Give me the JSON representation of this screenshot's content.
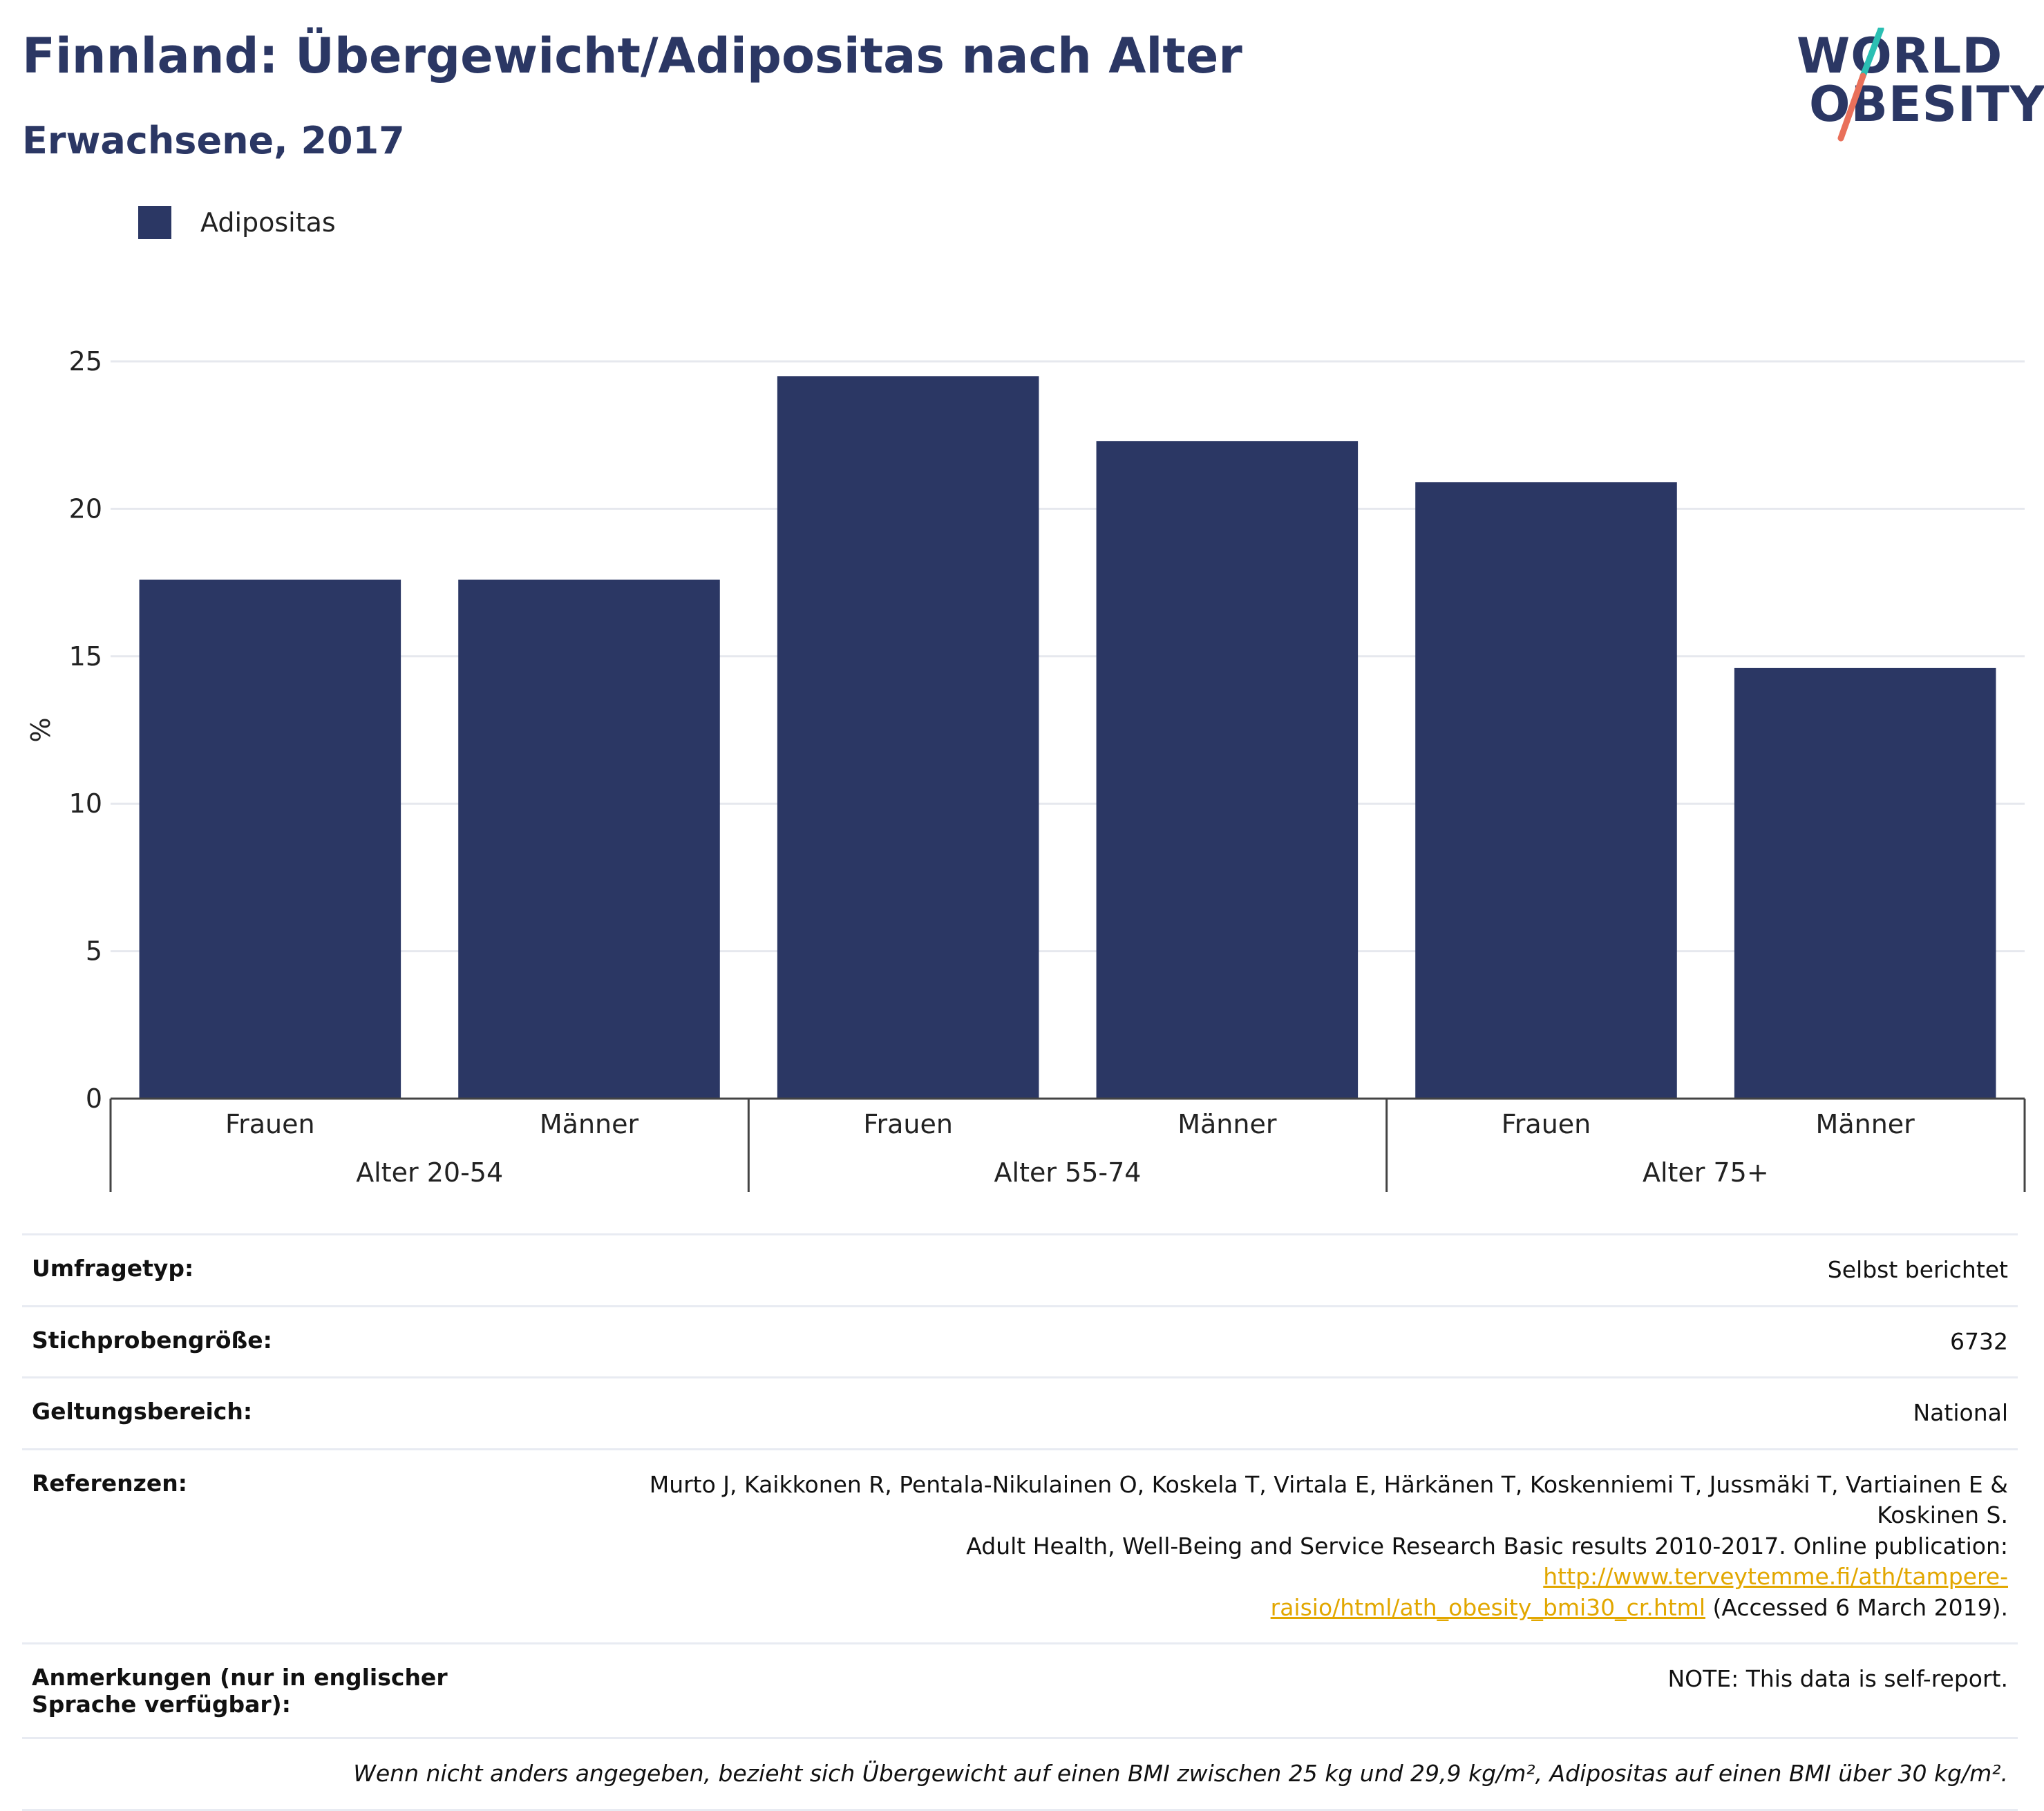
{
  "header": {
    "title": "Finnland: Übergewicht/Adipositas nach Alter",
    "subtitle": "Erwachsene, 2017"
  },
  "logo": {
    "line1": "WORLD",
    "line2": "OBESITY",
    "accent_colors": [
      "#2bbfb3",
      "#e9705a"
    ]
  },
  "chart_data": {
    "type": "bar",
    "categories": [
      "Frauen",
      "Männer",
      "Frauen",
      "Männer",
      "Frauen",
      "Männer"
    ],
    "groups": [
      {
        "label": "Alter 20-54",
        "categories": [
          "Frauen",
          "Männer"
        ]
      },
      {
        "label": "Alter 55-74",
        "categories": [
          "Frauen",
          "Männer"
        ]
      },
      {
        "label": "Alter 75+",
        "categories": [
          "Frauen",
          "Männer"
        ]
      }
    ],
    "series": [
      {
        "name": "Adipositas",
        "values": [
          17.6,
          17.6,
          24.5,
          22.3,
          20.9,
          14.6
        ],
        "color": "#2b3764"
      }
    ],
    "ylabel": "%",
    "ylim": [
      0,
      25
    ],
    "yticks": [
      0,
      5,
      10,
      15,
      20,
      25
    ],
    "grid": true,
    "legend_position": "top-left"
  },
  "info": {
    "survey_type_label": "Umfragetyp:",
    "survey_type_value": "Selbst berichtet",
    "sample_size_label": "Stichprobengröße:",
    "sample_size_value": "6732",
    "scope_label": "Geltungsbereich:",
    "scope_value": "National",
    "references_label": "Referenzen:",
    "references_text_1": "Murto J, Kaikkonen R, Pentala-Nikulainen O, Koskela T, Virtala E, Härkänen T, Koskenniemi T, Jussmäki T, Vartiainen E & Koskinen S.",
    "references_text_2": "Adult Health, Well-Being and Service Research Basic results 2010-2017. Online publication: ",
    "references_link_1": "http://www.terveytemme.fi/ath/tampere-",
    "references_link_2": "raisio/html/ath_obesity_bmi30_cr.html",
    "references_text_3": " (Accessed 6 March 2019).",
    "notes_label": "Anmerkungen (nur in englischer Sprache verfügbar):",
    "notes_value": "NOTE: This data is self-report.",
    "footnote": "Wenn nicht anders angegeben, bezieht sich Übergewicht auf einen BMI zwischen 25 kg und 29,9 kg/m², Adipositas auf einen BMI über 30 kg/m²."
  }
}
